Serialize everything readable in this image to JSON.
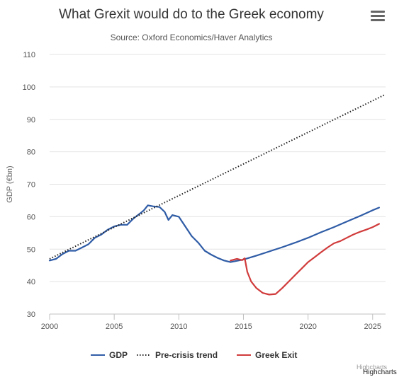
{
  "header": {
    "title": "What Grexit would do to the Greek economy",
    "subtitle": "Source: Oxford Economics/Haver Analytics",
    "menu_icon": "hamburger-menu-icon"
  },
  "credits": {
    "text": "Highcharts",
    "text_faint": "Highcharts"
  },
  "chart_data": {
    "type": "line",
    "title": "What Grexit would do to the Greek economy",
    "subtitle": "Source: Oxford Economics/Haver Analytics",
    "xlabel": "",
    "ylabel": "GDP (€bn)",
    "xlim": [
      2000,
      2026
    ],
    "ylim": [
      30,
      110
    ],
    "x_ticks": [
      "2000",
      "2005",
      "2010",
      "2015",
      "2020",
      "2025"
    ],
    "y_ticks": [
      "30",
      "40",
      "50",
      "60",
      "70",
      "80",
      "90",
      "100",
      "110"
    ],
    "grid": true,
    "legend_position": "bottom",
    "series": [
      {
        "name": "GDP",
        "color": "#2f5ca6",
        "dash": "solid",
        "points": [
          [
            2000,
            46.5
          ],
          [
            2000.5,
            47
          ],
          [
            2001,
            48.5
          ],
          [
            2001.5,
            49.5
          ],
          [
            2002,
            49.5
          ],
          [
            2002.5,
            50.5
          ],
          [
            2003,
            51.5
          ],
          [
            2003.5,
            53.5
          ],
          [
            2004,
            54.5
          ],
          [
            2004.5,
            56
          ],
          [
            2005,
            57
          ],
          [
            2005.5,
            57.5
          ],
          [
            2006,
            57.5
          ],
          [
            2006.5,
            59.5
          ],
          [
            2007,
            61
          ],
          [
            2007.3,
            62
          ],
          [
            2007.6,
            63.5
          ],
          [
            2008,
            63.2
          ],
          [
            2008.5,
            63
          ],
          [
            2008.9,
            61.5
          ],
          [
            2009.2,
            59
          ],
          [
            2009.5,
            60.5
          ],
          [
            2010,
            60
          ],
          [
            2010.5,
            57
          ],
          [
            2011,
            54
          ],
          [
            2011.5,
            52
          ],
          [
            2012,
            49.5
          ],
          [
            2012.5,
            48.3
          ],
          [
            2013,
            47.3
          ],
          [
            2013.5,
            46.5
          ],
          [
            2014,
            46
          ],
          [
            2015,
            46.8
          ],
          [
            2016,
            48
          ],
          [
            2017,
            49.3
          ],
          [
            2018,
            50.6
          ],
          [
            2019,
            52
          ],
          [
            2020,
            53.5
          ],
          [
            2021,
            55.2
          ],
          [
            2022,
            56.8
          ],
          [
            2023,
            58.5
          ],
          [
            2024,
            60.2
          ],
          [
            2025,
            62
          ],
          [
            2025.5,
            62.8
          ]
        ]
      },
      {
        "name": "Pre-crisis trend",
        "color": "#222222",
        "dash": "dotted",
        "points": [
          [
            2000,
            47
          ],
          [
            2025.9,
            97.5
          ]
        ]
      },
      {
        "name": "Greek Exit",
        "color": "#d13b3b",
        "dash": "solid",
        "points": [
          [
            2014,
            46.5
          ],
          [
            2014.5,
            47
          ],
          [
            2014.9,
            46.6
          ],
          [
            2015.1,
            47.2
          ],
          [
            2015.3,
            43
          ],
          [
            2015.6,
            40
          ],
          [
            2016,
            38
          ],
          [
            2016.5,
            36.5
          ],
          [
            2017,
            36
          ],
          [
            2017.5,
            36.2
          ],
          [
            2018,
            38
          ],
          [
            2018.5,
            40
          ],
          [
            2019,
            42
          ],
          [
            2019.5,
            44
          ],
          [
            2020,
            46
          ],
          [
            2020.5,
            47.5
          ],
          [
            2021,
            49
          ],
          [
            2021.5,
            50.5
          ],
          [
            2022,
            51.8
          ],
          [
            2022.5,
            52.5
          ],
          [
            2023,
            53.5
          ],
          [
            2023.5,
            54.5
          ],
          [
            2024,
            55.3
          ],
          [
            2024.5,
            56
          ],
          [
            2025,
            56.8
          ],
          [
            2025.5,
            57.8
          ]
        ]
      }
    ]
  }
}
